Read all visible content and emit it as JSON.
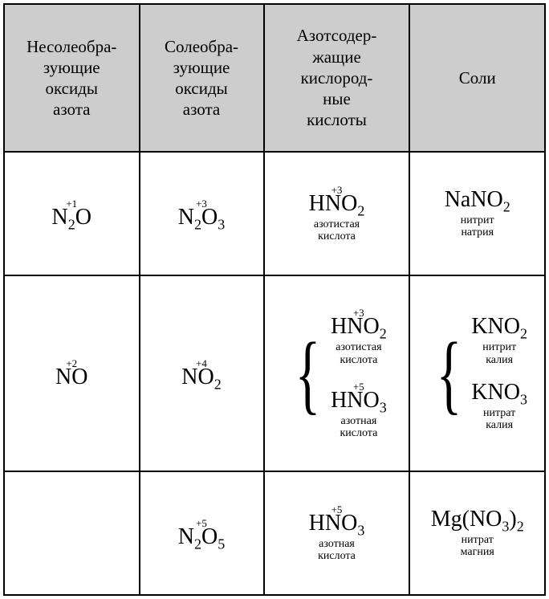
{
  "table": {
    "columns": [
      "Несолеобра-\nзующие\nоксиды\nазота",
      "Солеобра-\nзующие\nоксиды\nазота",
      "Азотсодер-\nжащие\nкислород-\nные\nкислоты",
      "Соли"
    ],
    "col_widths_pct": [
      25,
      23,
      27,
      25
    ],
    "header_bg": "#cdcdcd",
    "border_color": "#000000",
    "rows": [
      {
        "non_salt": {
          "ox": "+1",
          "formula_html": "N<sub>2</sub>O"
        },
        "salt": {
          "ox": "+3",
          "formula_html": "N<sub>2</sub>O<sub>3</sub>"
        },
        "acid": [
          {
            "ox": "+3",
            "formula_html": "HNO<sub>2</sub>",
            "caption": "азотистая\nкислота"
          }
        ],
        "salts": [
          {
            "formula_html": "NaNO<sub>2</sub>",
            "caption": "нитрит\nнатрия"
          }
        ],
        "brace": false
      },
      {
        "non_salt": {
          "ox": "+2",
          "formula_html": "NO"
        },
        "salt": {
          "ox": "+4",
          "formula_html": "NO<sub>2</sub>"
        },
        "acid": [
          {
            "ox": "+3",
            "formula_html": "HNO<sub>2</sub>",
            "caption": "азотистая\nкислота"
          },
          {
            "ox": "+5",
            "formula_html": "HNO<sub>3</sub>",
            "caption": "азотная\nкислота"
          }
        ],
        "salts": [
          {
            "formula_html": "KNO<sub>2</sub>",
            "caption": "нитрит\nкалия"
          },
          {
            "formula_html": "KNO<sub>3</sub>",
            "caption": "нитрат\nкалия"
          }
        ],
        "brace": true
      },
      {
        "non_salt": null,
        "salt": {
          "ox": "+5",
          "formula_html": "N<sub>2</sub>O<sub>5</sub>"
        },
        "acid": [
          {
            "ox": "+5",
            "formula_html": "HNO<sub>3</sub>",
            "caption": "азотная\nкислота"
          }
        ],
        "salts": [
          {
            "formula_html": "Mg(NO<sub>3</sub>)<sub>2</sub>",
            "caption": "нитрат\nмагния"
          }
        ],
        "brace": false
      }
    ],
    "formula_fontsize_pt": 21,
    "caption_fontsize_pt": 10,
    "ox_fontsize_pt": 9
  }
}
